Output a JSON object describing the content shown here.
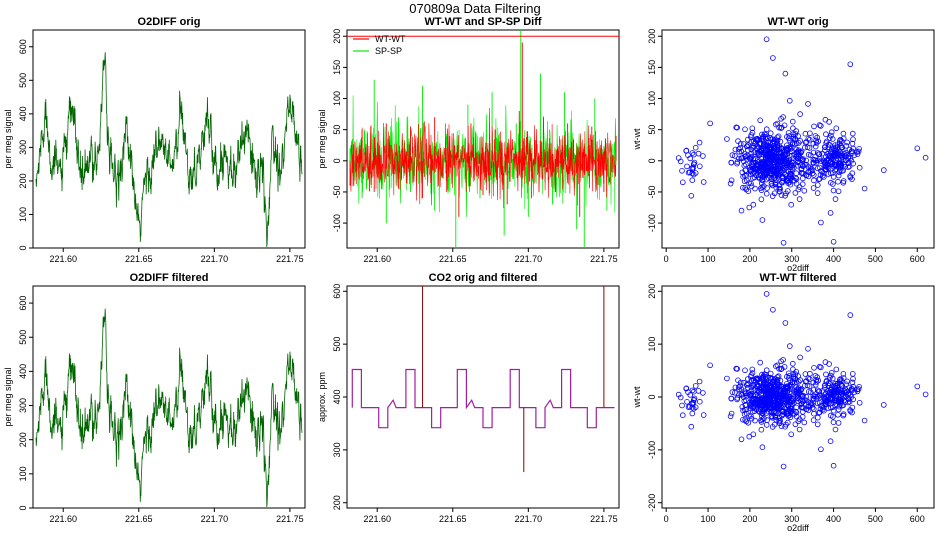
{
  "suptitle": "070809a   Data Filtering",
  "colors": {
    "o2": "#006400",
    "wtwt": "#ff0000",
    "spsp": "#00ee00",
    "co2_orig": "#8b0000",
    "co2_filt": "#a020a0",
    "scatter": "#0000ff",
    "refline": "#ff0000",
    "axis": "#000000"
  },
  "chart_data": [
    {
      "id": "p1",
      "type": "line",
      "title": "O2DIFF orig",
      "xlabel": "",
      "ylabel": "per meg signal",
      "xlim": [
        221.58,
        221.76
      ],
      "ylim": [
        0,
        650
      ],
      "xticks": [
        221.6,
        221.65,
        221.7,
        221.75
      ],
      "xtick_labels": [
        "221.60",
        "221.65",
        "221.70",
        "221.75"
      ],
      "yticks": [
        0,
        100,
        200,
        300,
        400,
        500,
        600
      ],
      "ytick_labels": [
        "0",
        "100",
        "200",
        "300",
        "400",
        "500",
        "600"
      ],
      "series": [
        {
          "name": "O2DIFF",
          "color": "#006400",
          "x": [
            221.582,
            221.588,
            221.594,
            221.6,
            221.606,
            221.612,
            221.618,
            221.624,
            221.627,
            221.63,
            221.636,
            221.642,
            221.648,
            221.65,
            221.654,
            221.66,
            221.666,
            221.672,
            221.678,
            221.684,
            221.69,
            221.696,
            221.702,
            221.708,
            221.714,
            221.72,
            221.726,
            221.732,
            221.735,
            221.738,
            221.744,
            221.75,
            221.756,
            221.758
          ],
          "y": [
            180,
            410,
            230,
            240,
            420,
            200,
            250,
            300,
            620,
            250,
            210,
            350,
            120,
            25,
            200,
            270,
            310,
            230,
            390,
            220,
            270,
            390,
            210,
            300,
            220,
            360,
            250,
            200,
            15,
            330,
            250,
            440,
            280,
            270
          ]
        }
      ]
    },
    {
      "id": "p2",
      "type": "line",
      "title": "WT-WT and SP-SP Diff",
      "xlabel": "",
      "ylabel": "per meg signal",
      "xlim": [
        221.58,
        221.76
      ],
      "ylim": [
        -140,
        210
      ],
      "xticks": [
        221.6,
        221.65,
        221.7,
        221.75
      ],
      "xtick_labels": [
        "221.60",
        "221.65",
        "221.70",
        "221.75"
      ],
      "yticks": [
        -100,
        -50,
        0,
        50,
        100,
        150,
        200
      ],
      "ytick_labels": [
        "-100",
        "-50",
        "0",
        "50",
        "100",
        "150",
        "200"
      ],
      "hline": 200,
      "legend": [
        {
          "label": "WT-WT",
          "color": "#ff0000"
        },
        {
          "label": "SP-SP",
          "color": "#00ee00"
        }
      ],
      "series": [
        {
          "name": "SP-SP",
          "color": "#00ee00",
          "x": [
            221.582,
            221.59,
            221.598,
            221.606,
            221.614,
            221.622,
            221.63,
            221.638,
            221.646,
            221.652,
            221.66,
            221.668,
            221.676,
            221.684,
            221.692,
            221.695,
            221.7,
            221.708,
            221.716,
            221.724,
            221.732,
            221.737,
            221.744,
            221.752,
            221.758
          ],
          "y": [
            20,
            -60,
            130,
            -100,
            70,
            -50,
            120,
            -80,
            40,
            -140,
            90,
            -60,
            110,
            -120,
            60,
            210,
            -90,
            140,
            -70,
            110,
            -110,
            -140,
            100,
            -80,
            40
          ]
        },
        {
          "name": "WT-WT",
          "color": "#ff0000",
          "x": [
            221.582,
            221.59,
            221.598,
            221.606,
            221.614,
            221.622,
            221.63,
            221.638,
            221.646,
            221.654,
            221.662,
            221.67,
            221.678,
            221.686,
            221.694,
            221.696,
            221.702,
            221.71,
            221.718,
            221.726,
            221.734,
            221.742,
            221.75,
            221.758
          ],
          "y": [
            -40,
            50,
            -50,
            60,
            -45,
            55,
            -60,
            70,
            -50,
            -90,
            60,
            -55,
            50,
            -70,
            80,
            190,
            -60,
            70,
            -50,
            60,
            -90,
            55,
            -50,
            40
          ]
        }
      ]
    },
    {
      "id": "p3",
      "type": "scatter",
      "title": "WT-WT orig",
      "xlabel": "o2diff",
      "ylabel": "wt-wt",
      "xlim": [
        -10,
        640
      ],
      "ylim": [
        -140,
        210
      ],
      "xticks": [
        0,
        100,
        200,
        300,
        400,
        500,
        600
      ],
      "xtick_labels": [
        "0",
        "100",
        "200",
        "300",
        "400",
        "500",
        "600"
      ],
      "yticks": [
        -100,
        -50,
        0,
        50,
        100,
        150,
        200
      ],
      "ytick_labels": [
        "-100",
        "-50",
        "0",
        "50",
        "100",
        "150",
        "200"
      ],
      "clusters": [
        [
          60,
          -5,
          12,
          18,
          30
        ],
        [
          250,
          0,
          40,
          25,
          500
        ],
        [
          405,
          5,
          25,
          18,
          160
        ],
        [
          330,
          0,
          60,
          35,
          120
        ]
      ],
      "points": [
        [
          240,
          195
        ],
        [
          255,
          165
        ],
        [
          285,
          140
        ],
        [
          440,
          155
        ],
        [
          600,
          20
        ],
        [
          620,
          5
        ],
        [
          400,
          -130
        ],
        [
          180,
          -80
        ],
        [
          230,
          -95
        ],
        [
          320,
          75
        ],
        [
          145,
          35
        ],
        [
          105,
          60
        ],
        [
          520,
          -15
        ]
      ]
    },
    {
      "id": "p4",
      "type": "line",
      "title": "O2DIFF filtered",
      "xlabel": "",
      "ylabel": "per meg signal",
      "xlim": [
        221.58,
        221.76
      ],
      "ylim": [
        0,
        650
      ],
      "xticks": [
        221.6,
        221.65,
        221.7,
        221.75
      ],
      "xtick_labels": [
        "221.60",
        "221.65",
        "221.70",
        "221.75"
      ],
      "yticks": [
        0,
        100,
        200,
        300,
        400,
        500,
        600
      ],
      "ytick_labels": [
        "0",
        "100",
        "200",
        "300",
        "400",
        "500",
        "600"
      ],
      "series": [
        {
          "name": "O2DIFF filtered",
          "color": "#006400",
          "x": [
            221.582,
            221.588,
            221.594,
            221.6,
            221.606,
            221.612,
            221.618,
            221.624,
            221.627,
            221.63,
            221.636,
            221.642,
            221.648,
            221.65,
            221.654,
            221.66,
            221.666,
            221.672,
            221.678,
            221.684,
            221.69,
            221.696,
            221.702,
            221.708,
            221.714,
            221.72,
            221.726,
            221.732,
            221.735,
            221.738,
            221.744,
            221.75,
            221.756,
            221.758
          ],
          "y": [
            180,
            410,
            230,
            240,
            420,
            200,
            250,
            300,
            620,
            250,
            210,
            350,
            120,
            25,
            200,
            270,
            310,
            230,
            390,
            220,
            270,
            390,
            210,
            300,
            220,
            360,
            250,
            200,
            15,
            330,
            250,
            440,
            280,
            270
          ]
        }
      ]
    },
    {
      "id": "p5",
      "type": "line",
      "title": "CO2 orig and filtered",
      "xlabel": "",
      "ylabel": "approx. ppm",
      "xlim": [
        221.58,
        221.76
      ],
      "ylim": [
        190,
        610
      ],
      "xticks": [
        221.6,
        221.65,
        221.7,
        221.75
      ],
      "xtick_labels": [
        "221.60",
        "221.65",
        "221.70",
        "221.75"
      ],
      "yticks": [
        200,
        300,
        400,
        500,
        600
      ],
      "ytick_labels": [
        "200",
        "300",
        "400",
        "500",
        "600"
      ],
      "base_level": 380,
      "high_level": 452,
      "low_level": 342,
      "pulse_starts": [
        221.5835,
        221.601,
        221.619,
        221.636,
        221.653,
        221.67,
        221.688,
        221.705,
        221.722,
        221.739
      ],
      "pulse_width": 0.006,
      "spikes": [
        {
          "x": 221.63,
          "y": 610
        },
        {
          "x": 221.697,
          "y": 258
        },
        {
          "x": 221.75,
          "y": 610
        }
      ],
      "series": [
        {
          "name": "CO2 orig",
          "color": "#8b0000"
        },
        {
          "name": "CO2 filtered",
          "color": "#a020a0"
        }
      ]
    },
    {
      "id": "p6",
      "type": "scatter",
      "title": "WT-WT filtered",
      "xlabel": "o2diff",
      "ylabel": "wt-wt",
      "xlim": [
        -10,
        640
      ],
      "ylim": [
        -210,
        210
      ],
      "xticks": [
        0,
        100,
        200,
        300,
        400,
        500,
        600
      ],
      "xtick_labels": [
        "0",
        "100",
        "200",
        "300",
        "400",
        "500",
        "600"
      ],
      "yticks": [
        -200,
        -100,
        0,
        100,
        200
      ],
      "ytick_labels": [
        "-200",
        "-100",
        "0",
        "100",
        "200"
      ],
      "clusters": [
        [
          60,
          -5,
          12,
          18,
          30
        ],
        [
          250,
          0,
          40,
          25,
          500
        ],
        [
          405,
          5,
          25,
          18,
          160
        ],
        [
          330,
          0,
          60,
          35,
          120
        ]
      ],
      "points": [
        [
          240,
          195
        ],
        [
          255,
          165
        ],
        [
          285,
          140
        ],
        [
          440,
          155
        ],
        [
          600,
          20
        ],
        [
          620,
          5
        ],
        [
          400,
          -130
        ],
        [
          180,
          -80
        ],
        [
          230,
          -95
        ],
        [
          320,
          75
        ],
        [
          145,
          35
        ],
        [
          105,
          60
        ],
        [
          520,
          -15
        ]
      ]
    }
  ]
}
